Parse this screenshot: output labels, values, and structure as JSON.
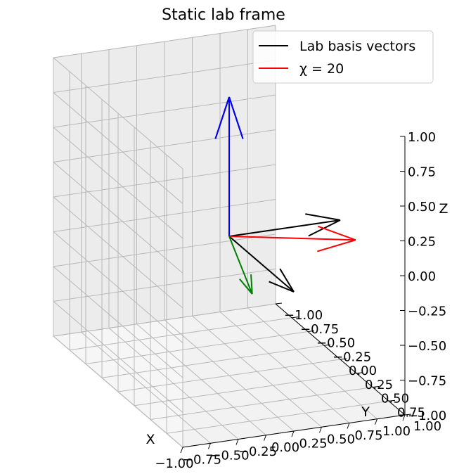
{
  "chart_data": {
    "type": "3d-quiver",
    "title": "Static lab frame",
    "xlabel": "X",
    "ylabel": "Y",
    "zlabel": "Z",
    "xlim": [
      -1,
      1
    ],
    "ylim": [
      -1,
      1
    ],
    "zlim": [
      -1,
      1
    ],
    "xticks": [
      "−1.00",
      "−0.75",
      "−0.50",
      "−0.25",
      "0.00",
      "0.25",
      "0.50",
      "0.75",
      "1.00"
    ],
    "yticks": [
      "−1.00",
      "−0.75",
      "−0.50",
      "−0.25",
      "0.00",
      "0.25",
      "0.50",
      "0.75",
      "1.00"
    ],
    "zticks": [
      "−1.00",
      "−0.75",
      "−0.50",
      "−0.25",
      "0.00",
      "0.25",
      "0.50",
      "0.75",
      "1.00"
    ],
    "grid": true,
    "legend": {
      "position": "top-right",
      "entries": [
        {
          "label": "Lab basis vectors",
          "color": "#000000"
        },
        {
          "label": "χ = 20",
          "color": "#ff0000"
        }
      ]
    },
    "origin": [
      0,
      0,
      0
    ],
    "series": [
      {
        "name": "Lab basis vectors",
        "color": "#000000",
        "vectors": [
          [
            1,
            0,
            0
          ],
          [
            0,
            1,
            0
          ],
          [
            0,
            0,
            1
          ]
        ]
      },
      {
        "color": "#ff0000",
        "vectors": [
          [
            0.94,
            0.34,
            0.0
          ]
        ]
      },
      {
        "color": "#008000",
        "vectors": [
          [
            -0.34,
            0.94,
            0.0
          ]
        ]
      },
      {
        "color": "#0000ff",
        "vectors": [
          [
            0.0,
            0.0,
            1.0
          ]
        ]
      }
    ]
  }
}
